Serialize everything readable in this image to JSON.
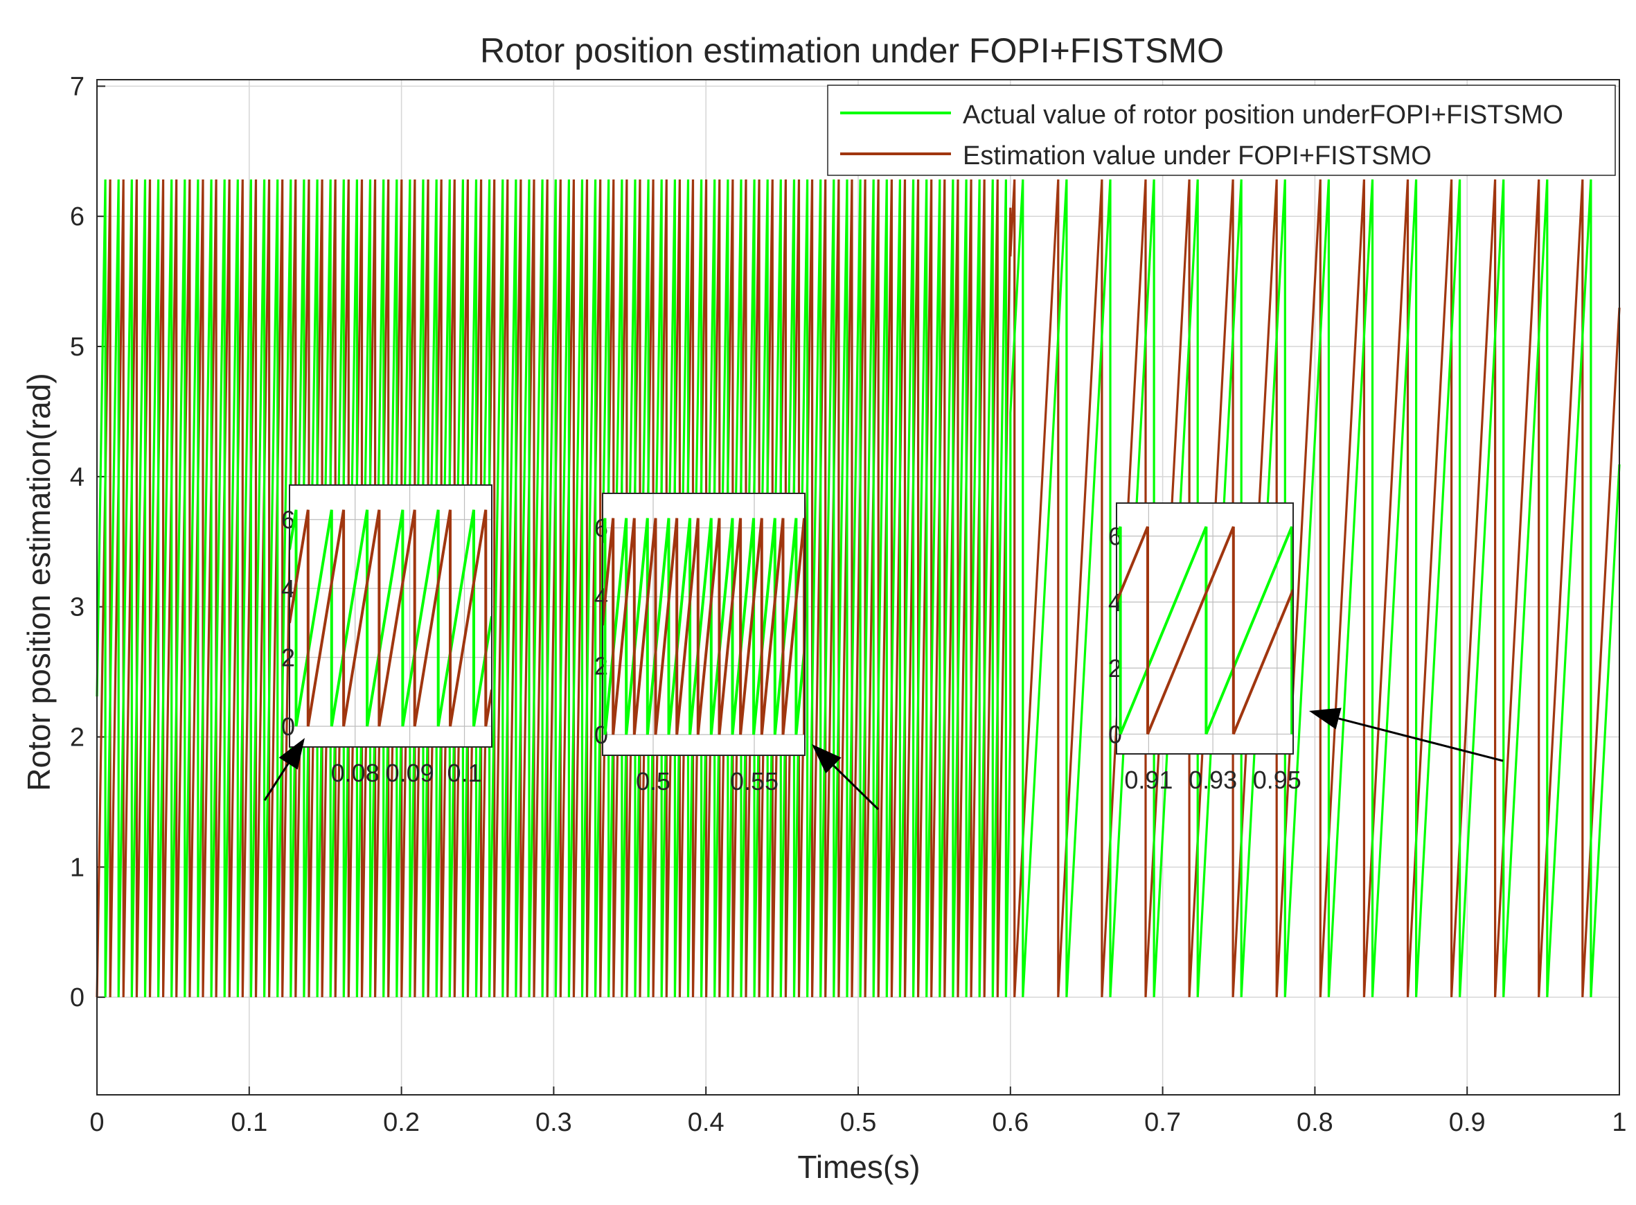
{
  "chart_data": {
    "type": "line",
    "title": "Rotor position estimation under FOPI+FISTSMO",
    "xlabel": "Times(s)",
    "ylabel": "Rotor position estimation(rad)",
    "xlim": [
      0,
      1
    ],
    "ylim": [
      -0.75,
      7.05
    ],
    "xticks": [
      0,
      0.1,
      0.2,
      0.3,
      0.4,
      0.5,
      0.6,
      0.7,
      0.8,
      0.9,
      1
    ],
    "xtick_labels": [
      "0",
      "0.1",
      "0.2",
      "0.3",
      "0.4",
      "0.5",
      "0.6",
      "0.7",
      "0.8",
      "0.9",
      "1"
    ],
    "yticks": [
      0,
      1,
      2,
      3,
      4,
      5,
      6,
      7
    ],
    "ytick_labels": [
      "0",
      "1",
      "2",
      "3",
      "4",
      "5",
      "6",
      "7"
    ],
    "grid": true,
    "legend_position": "top-right",
    "series": [
      {
        "name": "Actual value of rotor position underFOPI+FISTSMO",
        "color": "#00ff00",
        "waveform": "sawtooth",
        "range": [
          0,
          6.2832
        ],
        "regimes": [
          {
            "t_start": 0,
            "t_end": 0.6,
            "period": 0.0087
          },
          {
            "t_start": 0.6,
            "t_end": 1.0,
            "period": 0.0287
          }
        ],
        "phase_offset": 0.0055
      },
      {
        "name": "Estimation value under FOPI+FISTSMO",
        "color": "#a0360f",
        "waveform": "sawtooth",
        "range": [
          0,
          6.2832
        ],
        "regimes": [
          {
            "t_start": 0,
            "t_end": 0.6,
            "period": 0.0087
          },
          {
            "t_start": 0.6,
            "t_end": 1.0,
            "period": 0.0287
          }
        ],
        "phase_offset": 0.0
      }
    ],
    "insets": [
      {
        "name": "inset-1",
        "xlim": [
          0.068,
          0.105
        ],
        "ylim": [
          -0.6,
          7
        ],
        "xtick_labels": [
          "0.08",
          "0.09",
          "0.1"
        ],
        "xtick_values": [
          0.08,
          0.09,
          0.1
        ],
        "ytick_labels": [
          "0",
          "2",
          "4",
          "6"
        ],
        "ytick_values": [
          0,
          2,
          4,
          6
        ],
        "period": 0.0065,
        "estimate_lag": 0.0022
      },
      {
        "name": "inset-2",
        "xlim": [
          0.475,
          0.575
        ],
        "ylim": [
          -0.6,
          7
        ],
        "xtick_labels": [
          "0.5",
          "0.55"
        ],
        "xtick_values": [
          0.5,
          0.55
        ],
        "ytick_labels": [
          "0",
          "2",
          "4",
          "6"
        ],
        "ytick_values": [
          0,
          2,
          4,
          6
        ],
        "period": 0.0105,
        "estimate_lag": 0.004
      },
      {
        "name": "inset-3",
        "xlim": [
          0.9,
          0.955
        ],
        "ylim": [
          -0.6,
          7
        ],
        "xtick_labels": [
          "0.91",
          "0.93",
          "0.95"
        ],
        "xtick_values": [
          0.91,
          0.93,
          0.95
        ],
        "ytick_labels": [
          "0",
          "2",
          "4",
          "6"
        ],
        "ytick_values": [
          0,
          2,
          4,
          6
        ],
        "period": 0.0267,
        "estimate_lag": 0.0085
      }
    ]
  }
}
